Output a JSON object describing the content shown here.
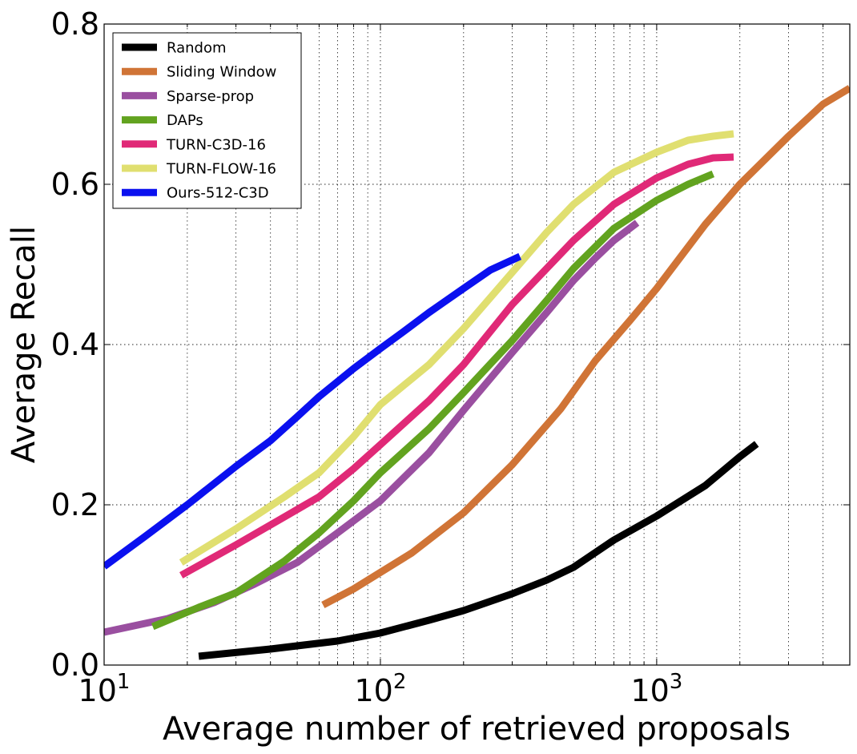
{
  "chart_data": {
    "type": "line",
    "xlabel": "Average number of retrieved proposals",
    "ylabel": "Average Recall",
    "xscale": "log",
    "xlim": [
      10,
      5000
    ],
    "ylim": [
      0,
      0.8
    ],
    "x_ticks": [
      {
        "value": 10,
        "base": "10",
        "exp": "1"
      },
      {
        "value": 100,
        "base": "10",
        "exp": "2"
      },
      {
        "value": 1000,
        "base": "10",
        "exp": "3"
      }
    ],
    "y_ticks": [
      {
        "value": 0.0,
        "label": "0.0"
      },
      {
        "value": 0.2,
        "label": "0.2"
      },
      {
        "value": 0.4,
        "label": "0.4"
      },
      {
        "value": 0.6,
        "label": "0.6"
      },
      {
        "value": 0.8,
        "label": "0.8"
      }
    ],
    "grid": true,
    "legend": "top-left",
    "series": [
      {
        "name": "Random",
        "color": "#000000",
        "x": [
          22,
          40,
          70,
          100,
          150,
          200,
          300,
          400,
          500,
          700,
          1000,
          1500,
          2000,
          2300
        ],
        "y": [
          0.011,
          0.02,
          0.03,
          0.04,
          0.056,
          0.068,
          0.089,
          0.106,
          0.122,
          0.156,
          0.186,
          0.224,
          0.26,
          0.276
        ]
      },
      {
        "name": "Sliding Window",
        "color": "#d07436",
        "x": [
          62,
          80,
          130,
          200,
          300,
          450,
          600,
          800,
          1000,
          1500,
          2000,
          3000,
          4000,
          5000
        ],
        "y": [
          0.075,
          0.095,
          0.14,
          0.19,
          0.25,
          0.32,
          0.38,
          0.43,
          0.47,
          0.55,
          0.6,
          0.66,
          0.7,
          0.72
        ]
      },
      {
        "name": "Sparse-prop",
        "color": "#9a4fa0",
        "x": [
          10,
          17,
          25,
          35,
          50,
          70,
          100,
          150,
          200,
          300,
          400,
          500,
          600,
          700,
          850
        ],
        "y": [
          0.041,
          0.058,
          0.078,
          0.101,
          0.128,
          0.165,
          0.205,
          0.265,
          0.318,
          0.39,
          0.44,
          0.48,
          0.508,
          0.53,
          0.552
        ]
      },
      {
        "name": "DAPs",
        "color": "#62a31f",
        "x": [
          15,
          22,
          30,
          45,
          60,
          80,
          100,
          150,
          200,
          300,
          400,
          500,
          700,
          1000,
          1300,
          1600
        ],
        "y": [
          0.048,
          0.072,
          0.09,
          0.13,
          0.165,
          0.205,
          0.24,
          0.295,
          0.34,
          0.405,
          0.455,
          0.495,
          0.545,
          0.58,
          0.6,
          0.613
        ]
      },
      {
        "name": "TURN-C3D-16",
        "color": "#e02977",
        "x": [
          19,
          30,
          45,
          60,
          80,
          100,
          150,
          200,
          300,
          400,
          500,
          700,
          1000,
          1300,
          1600,
          1900
        ],
        "y": [
          0.112,
          0.15,
          0.185,
          0.21,
          0.245,
          0.275,
          0.33,
          0.375,
          0.45,
          0.495,
          0.53,
          0.575,
          0.608,
          0.625,
          0.633,
          0.634
        ]
      },
      {
        "name": "TURN-FLOW-16",
        "color": "#e0df70",
        "x": [
          19,
          30,
          45,
          60,
          80,
          100,
          150,
          200,
          300,
          400,
          500,
          700,
          1000,
          1300,
          1600,
          1900
        ],
        "y": [
          0.128,
          0.17,
          0.21,
          0.24,
          0.285,
          0.325,
          0.375,
          0.42,
          0.49,
          0.54,
          0.575,
          0.615,
          0.64,
          0.655,
          0.66,
          0.663
        ]
      },
      {
        "name": "Ours-512-C3D",
        "color": "#0a10ef",
        "x": [
          10,
          14,
          20,
          30,
          40,
          50,
          60,
          80,
          100,
          120,
          150,
          200,
          250,
          320
        ],
        "y": [
          0.123,
          0.16,
          0.2,
          0.248,
          0.28,
          0.31,
          0.335,
          0.37,
          0.395,
          0.415,
          0.44,
          0.47,
          0.493,
          0.51
        ]
      }
    ]
  }
}
